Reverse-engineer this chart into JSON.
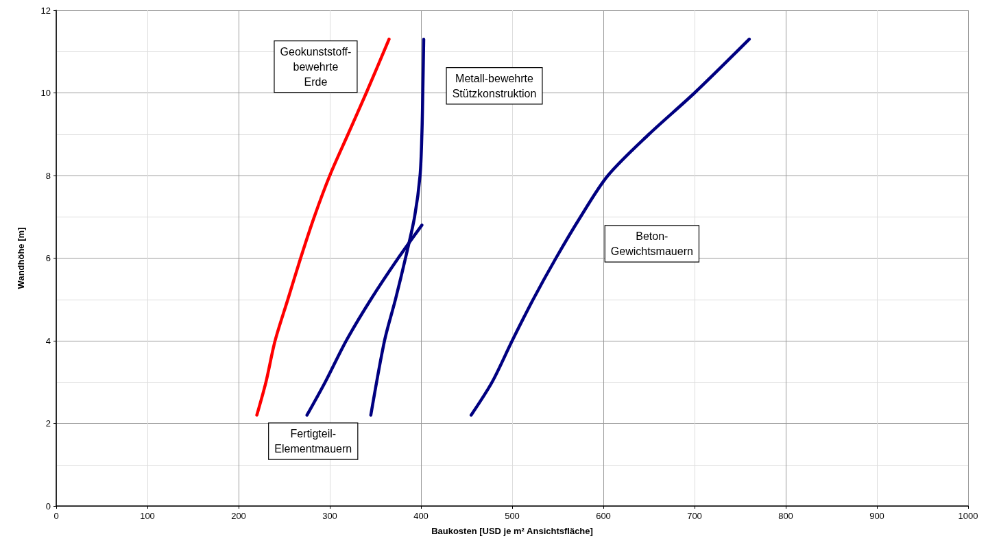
{
  "chart_data": {
    "type": "line",
    "xlabel": "Baukosten [USD je m² Ansichtsfläche]",
    "ylabel": "Wandhöhe [m]",
    "xlim": [
      0,
      1000
    ],
    "xticks": [
      0,
      100,
      200,
      300,
      400,
      500,
      600,
      700,
      800,
      900,
      1000
    ],
    "ylim": [
      0,
      12
    ],
    "yticks": [
      0,
      2,
      4,
      6,
      8,
      10,
      12
    ],
    "grid": true,
    "legend": false,
    "marker": "none",
    "line_style": "solid",
    "series": [
      {
        "name": "Geokunststoff-\nbewehrte\nErde",
        "color": "#ff0000",
        "x": [
          220,
          230,
          240,
          254,
          268,
          283,
          300,
          320,
          340,
          365
        ],
        "values": [
          2.2,
          3,
          4,
          5,
          6,
          7,
          8,
          9,
          10,
          11.3
        ]
      },
      {
        "name": "Fertigteil-\nElementmauern",
        "color": "#000080",
        "x": [
          275,
          295,
          318,
          345,
          375,
          401
        ],
        "values": [
          2.2,
          3,
          4,
          5,
          6,
          6.8
        ]
      },
      {
        "name": "Metall-bewehrte\nStützkonstruktion",
        "color": "#000080",
        "x": [
          345,
          360,
          372,
          383,
          393,
          399,
          401,
          402,
          403
        ],
        "values": [
          2.2,
          4,
          5,
          6,
          7,
          8,
          9,
          10,
          11.3
        ]
      },
      {
        "name": "Beton-\nGewichtsmauern",
        "color": "#000080",
        "x": [
          455,
          478,
          500,
          523,
          548,
          575,
          605,
          650,
          700,
          760
        ],
        "values": [
          2.2,
          3,
          4,
          5,
          6,
          7,
          8,
          9,
          10,
          11.3
        ]
      }
    ]
  }
}
